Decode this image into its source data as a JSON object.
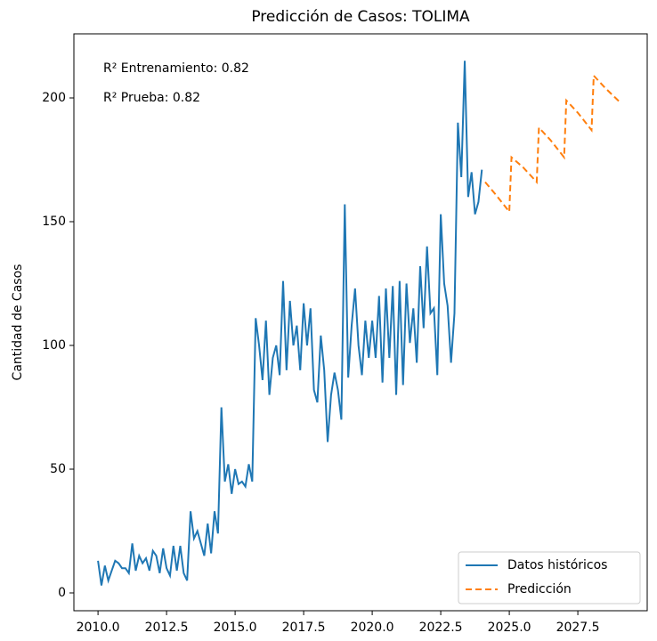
{
  "chart_data": {
    "type": "line",
    "title": "Predicción de Casos: TOLIMA",
    "ylabel": "Cantidad de Casos",
    "annotations": [
      "R² Entrenamiento: 0.82",
      "R² Prueba: 0.82"
    ],
    "xlim": [
      2009.12,
      2030.03
    ],
    "ylim": [
      -7.2,
      225.9
    ],
    "xticks": [
      {
        "value": 2010,
        "label": "2010.0"
      },
      2012.5,
      {
        "value": 2015,
        "label": "2015.0"
      },
      2017.5,
      {
        "value": 2020,
        "label": "2020.0"
      },
      2022.5,
      {
        "value": 2025,
        "label": "2025.0"
      },
      2027.5
    ],
    "yticks": [
      0,
      50,
      100,
      150,
      200
    ],
    "legend": "lower right",
    "grid": false,
    "series": [
      {
        "name": "Datos históricos",
        "color": "#1f77b4",
        "style": "solid",
        "x": [
          2010,
          2010.125,
          2010.25,
          2010.375,
          2010.5,
          2010.625,
          2010.75,
          2010.875,
          2011,
          2011.125,
          2011.25,
          2011.375,
          2011.5,
          2011.625,
          2011.75,
          2011.875,
          2012,
          2012.125,
          2012.25,
          2012.375,
          2012.5,
          2012.625,
          2012.75,
          2012.875,
          2013,
          2013.125,
          2013.25,
          2013.375,
          2013.5,
          2013.625,
          2013.75,
          2013.875,
          2014,
          2014.125,
          2014.25,
          2014.375,
          2014.5,
          2014.625,
          2014.75,
          2014.875,
          2015,
          2015.125,
          2015.25,
          2015.375,
          2015.5,
          2015.625,
          2015.75,
          2015.875,
          2016,
          2016.125,
          2016.25,
          2016.375,
          2016.5,
          2016.625,
          2016.75,
          2016.875,
          2017,
          2017.125,
          2017.25,
          2017.375,
          2017.5,
          2017.625,
          2017.75,
          2017.875,
          2018,
          2018.125,
          2018.25,
          2018.375,
          2018.5,
          2018.625,
          2018.75,
          2018.875,
          2019,
          2019.125,
          2019.25,
          2019.375,
          2019.5,
          2019.625,
          2019.75,
          2019.875,
          2020,
          2020.125,
          2020.25,
          2020.375,
          2020.5,
          2020.625,
          2020.75,
          2020.875,
          2021,
          2021.125,
          2021.25,
          2021.375,
          2021.5,
          2021.625,
          2021.75,
          2021.875,
          2022,
          2022.125,
          2022.25,
          2022.375,
          2022.5,
          2022.625,
          2022.75,
          2022.875,
          2023,
          2023.125,
          2023.25,
          2023.375,
          2023.5,
          2023.625,
          2023.75,
          2023.875,
          2024
        ],
        "values": [
          13,
          3,
          11,
          5,
          9,
          13,
          12,
          10,
          10,
          8,
          20,
          9,
          15,
          12,
          14,
          9,
          17,
          15,
          8,
          18,
          10,
          7,
          19,
          9,
          19,
          8,
          5,
          33,
          22,
          25,
          20,
          15,
          28,
          16,
          33,
          24,
          75,
          45,
          52,
          40,
          50,
          44,
          45,
          43,
          52,
          45,
          111,
          100,
          86,
          110,
          80,
          95,
          100,
          88,
          126,
          90,
          118,
          100,
          108,
          90,
          117,
          100,
          115,
          82,
          77,
          104,
          90,
          61,
          80,
          89,
          82,
          70,
          157,
          87,
          108,
          123,
          100,
          88,
          110,
          95,
          110,
          95,
          120,
          85,
          123,
          95,
          124,
          80,
          126,
          84,
          125,
          101,
          115,
          93,
          132,
          107,
          140,
          113,
          115,
          88,
          153,
          125,
          116,
          93,
          113,
          190,
          168,
          215,
          160,
          170,
          153,
          158,
          171
        ]
      },
      {
        "name": "Predicción",
        "color": "#ff7f0e",
        "style": "dashed",
        "x": [
          2024.12,
          2024.5,
          2025,
          2025.08,
          2025.5,
          2026,
          2026.08,
          2026.5,
          2027,
          2027.08,
          2027.5,
          2028,
          2028.08,
          2028.5,
          2029.06
        ],
        "values": [
          166,
          161,
          154,
          176,
          172,
          166,
          188,
          183,
          176,
          199,
          194,
          187,
          209,
          204,
          198
        ]
      }
    ]
  }
}
